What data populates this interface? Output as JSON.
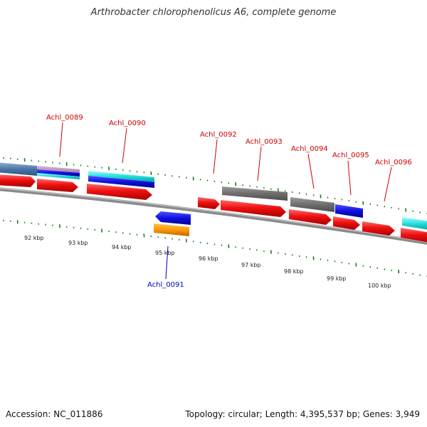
{
  "title": "Arthrobacter chlorophenolicus A6, complete genome",
  "footer": {
    "accession": "Accession: NC_011886",
    "summary": "Topology: circular; Length: 4,395,537 bp; Genes: 3,949"
  },
  "colors": {
    "forward_label": "#cc0000",
    "reverse_label": "#0000cc",
    "tick": "#1a7a1a",
    "backbone": "#8a8a8a",
    "leader": "#cc0000",
    "leader_reverse": "#0000aa"
  },
  "kbp_labels": [
    "92 kbp",
    "93 kbp",
    "94 kbp",
    "95 kbp",
    "96 kbp",
    "97 kbp",
    "98 kbp",
    "99 kbp",
    "100 kbp"
  ],
  "genes": [
    {
      "id": "Achl_0089",
      "strand": "forward"
    },
    {
      "id": "Achl_0090",
      "strand": "forward"
    },
    {
      "id": "Achl_0091",
      "strand": "reverse"
    },
    {
      "id": "Achl_0092",
      "strand": "forward"
    },
    {
      "id": "Achl_0093",
      "strand": "forward"
    },
    {
      "id": "Achl_0094",
      "strand": "forward"
    },
    {
      "id": "Achl_0095",
      "strand": "forward"
    },
    {
      "id": "Achl_0096",
      "strand": "forward"
    }
  ]
}
